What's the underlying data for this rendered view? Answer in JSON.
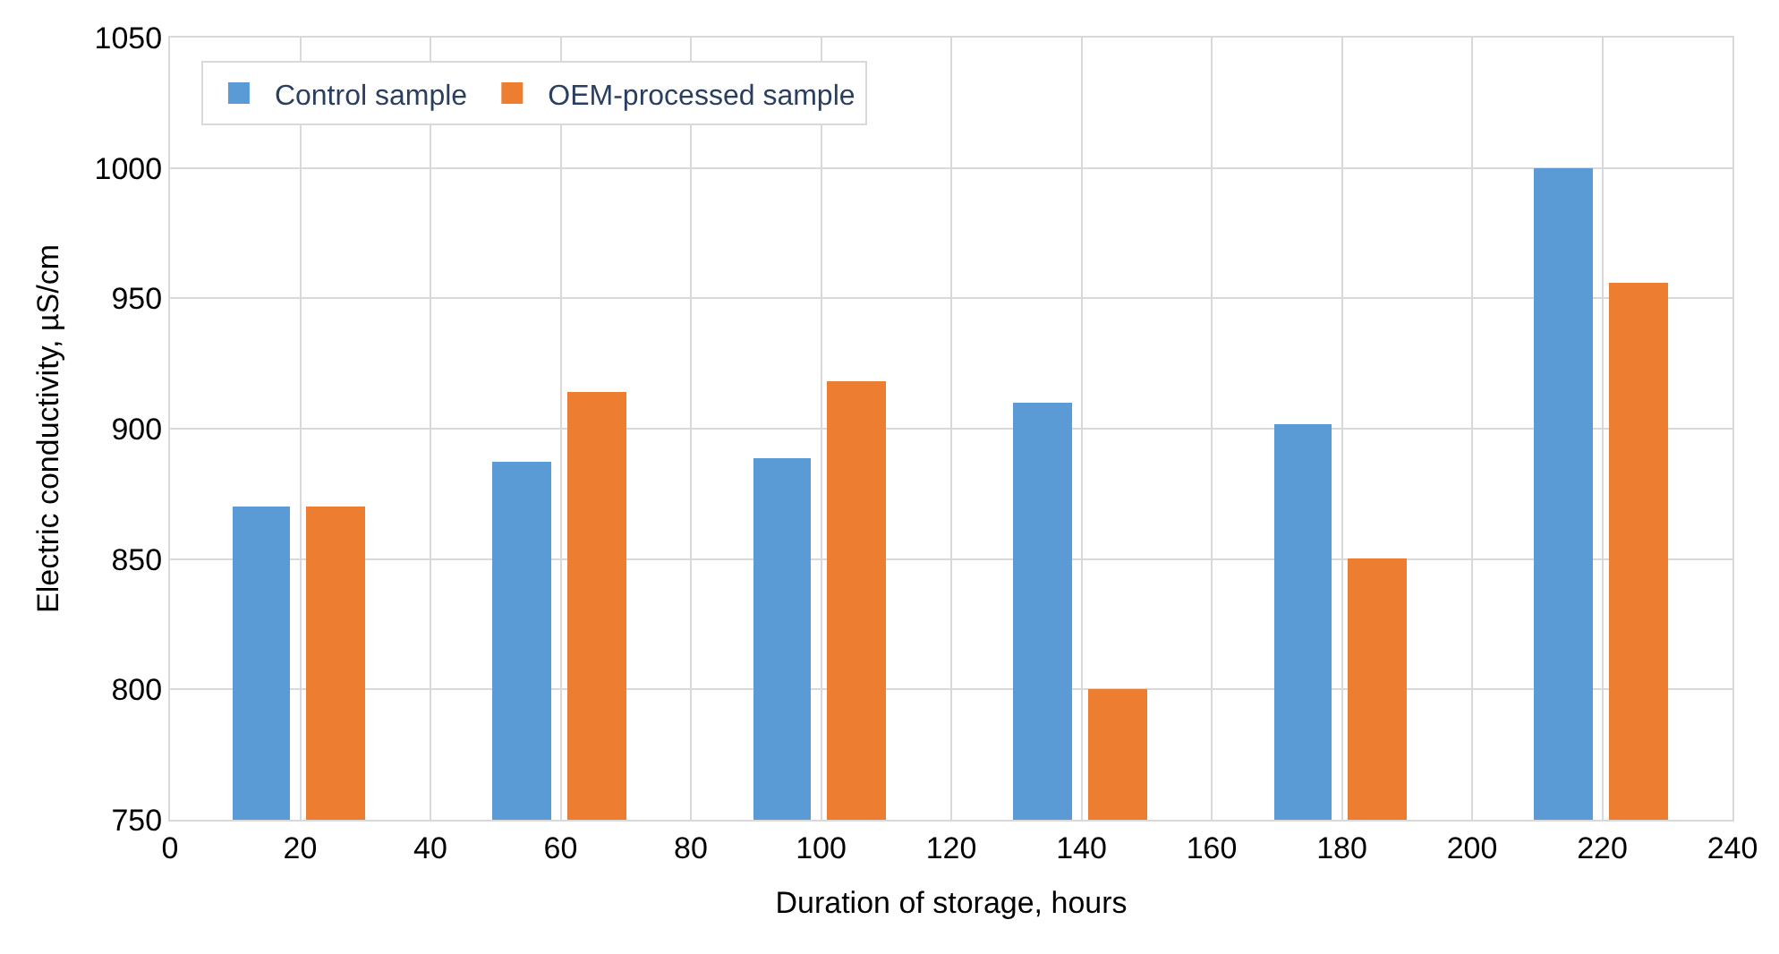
{
  "chart_data": {
    "type": "bar",
    "xlabel": "Duration of storage, hours",
    "ylabel": "Electric conductivity, µS/cm",
    "series": [
      {
        "name": "Control sample",
        "color": "#5b9bd5",
        "x": [
          14,
          54,
          94,
          134,
          174,
          214
        ],
        "values": [
          870,
          887,
          889,
          910,
          902,
          1000
        ]
      },
      {
        "name": "OEM-processed sample",
        "color": "#ed7d31",
        "x": [
          25.5,
          65.5,
          105.5,
          145.5,
          185.5,
          225.5
        ],
        "values": [
          870,
          914,
          918,
          800,
          850,
          956
        ]
      }
    ],
    "xlim": [
      0,
      240
    ],
    "xticks": [
      0,
      20,
      40,
      60,
      80,
      100,
      120,
      140,
      160,
      180,
      200,
      220,
      240
    ],
    "ylim": [
      750,
      1050
    ],
    "yticks": [
      750,
      800,
      850,
      900,
      950,
      1000,
      1050
    ],
    "grid": true,
    "legend": "top left"
  }
}
